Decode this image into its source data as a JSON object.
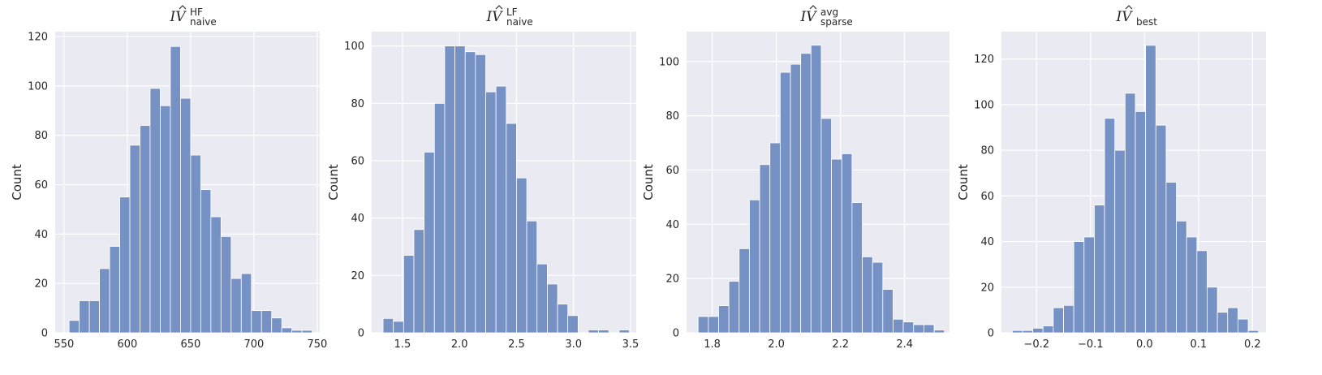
{
  "chart_data": [
    {
      "type": "bar",
      "title_base": "IV",
      "title_sup": "HF",
      "title_sub": "naive",
      "ylabel": "Count",
      "xlim": [
        543,
        752
      ],
      "ylim": [
        0,
        122
      ],
      "xticks": [
        550,
        600,
        650,
        700,
        750
      ],
      "yticks": [
        0,
        20,
        40,
        60,
        80,
        100,
        120
      ],
      "grid": true,
      "bins": [
        {
          "x0": 554,
          "x1": 562,
          "y": 5
        },
        {
          "x0": 562,
          "x1": 570,
          "y": 13
        },
        {
          "x0": 570,
          "x1": 578,
          "y": 13
        },
        {
          "x0": 578,
          "x1": 586,
          "y": 26
        },
        {
          "x0": 586,
          "x1": 594,
          "y": 35
        },
        {
          "x0": 594,
          "x1": 602,
          "y": 55
        },
        {
          "x0": 602,
          "x1": 610,
          "y": 76
        },
        {
          "x0": 610,
          "x1": 618,
          "y": 84
        },
        {
          "x0": 618,
          "x1": 626,
          "y": 99
        },
        {
          "x0": 626,
          "x1": 634,
          "y": 92
        },
        {
          "x0": 634,
          "x1": 642,
          "y": 116
        },
        {
          "x0": 642,
          "x1": 650,
          "y": 95
        },
        {
          "x0": 650,
          "x1": 658,
          "y": 72
        },
        {
          "x0": 658,
          "x1": 666,
          "y": 58
        },
        {
          "x0": 666,
          "x1": 674,
          "y": 47
        },
        {
          "x0": 674,
          "x1": 682,
          "y": 39
        },
        {
          "x0": 682,
          "x1": 690,
          "y": 22
        },
        {
          "x0": 690,
          "x1": 698,
          "y": 24
        },
        {
          "x0": 698,
          "x1": 706,
          "y": 9
        },
        {
          "x0": 706,
          "x1": 714,
          "y": 9
        },
        {
          "x0": 714,
          "x1": 722,
          "y": 6
        },
        {
          "x0": 722,
          "x1": 730,
          "y": 2
        },
        {
          "x0": 730,
          "x1": 738,
          "y": 1
        },
        {
          "x0": 738,
          "x1": 746,
          "y": 1
        }
      ]
    },
    {
      "type": "bar",
      "title_base": "IV",
      "title_sup": "LF",
      "title_sub": "naive",
      "ylabel": "Count",
      "xlim": [
        1.23,
        3.55
      ],
      "ylim": [
        0,
        105
      ],
      "xticks": [
        1.5,
        2.0,
        2.5,
        3.0,
        3.5
      ],
      "yticks": [
        0,
        20,
        40,
        60,
        80,
        100
      ],
      "grid": true,
      "bins": [
        {
          "x0": 1.33,
          "x1": 1.42,
          "y": 5
        },
        {
          "x0": 1.42,
          "x1": 1.51,
          "y": 4
        },
        {
          "x0": 1.51,
          "x1": 1.6,
          "y": 27
        },
        {
          "x0": 1.6,
          "x1": 1.69,
          "y": 36
        },
        {
          "x0": 1.69,
          "x1": 1.78,
          "y": 63
        },
        {
          "x0": 1.78,
          "x1": 1.87,
          "y": 80
        },
        {
          "x0": 1.87,
          "x1": 1.96,
          "y": 100
        },
        {
          "x0": 1.96,
          "x1": 2.05,
          "y": 100
        },
        {
          "x0": 2.05,
          "x1": 2.14,
          "y": 98
        },
        {
          "x0": 2.14,
          "x1": 2.23,
          "y": 97
        },
        {
          "x0": 2.23,
          "x1": 2.32,
          "y": 84
        },
        {
          "x0": 2.32,
          "x1": 2.41,
          "y": 86
        },
        {
          "x0": 2.41,
          "x1": 2.5,
          "y": 73
        },
        {
          "x0": 2.5,
          "x1": 2.59,
          "y": 54
        },
        {
          "x0": 2.59,
          "x1": 2.68,
          "y": 39
        },
        {
          "x0": 2.68,
          "x1": 2.77,
          "y": 24
        },
        {
          "x0": 2.77,
          "x1": 2.86,
          "y": 17
        },
        {
          "x0": 2.86,
          "x1": 2.95,
          "y": 10
        },
        {
          "x0": 2.95,
          "x1": 3.04,
          "y": 6
        },
        {
          "x0": 3.04,
          "x1": 3.13,
          "y": 0
        },
        {
          "x0": 3.13,
          "x1": 3.22,
          "y": 1
        },
        {
          "x0": 3.22,
          "x1": 3.31,
          "y": 1
        },
        {
          "x0": 3.31,
          "x1": 3.4,
          "y": 0
        },
        {
          "x0": 3.4,
          "x1": 3.49,
          "y": 1
        }
      ]
    },
    {
      "type": "bar",
      "title_base": "IV",
      "title_sup": "avg",
      "title_sub": "sparse",
      "ylabel": "Count",
      "xlim": [
        1.72,
        2.54
      ],
      "ylim": [
        0,
        111
      ],
      "xticks": [
        1.8,
        2.0,
        2.2,
        2.4
      ],
      "yticks": [
        0,
        20,
        40,
        60,
        80,
        100
      ],
      "grid": true,
      "bins": [
        {
          "x0": 1.756,
          "x1": 1.788,
          "y": 6
        },
        {
          "x0": 1.788,
          "x1": 1.82,
          "y": 6
        },
        {
          "x0": 1.82,
          "x1": 1.852,
          "y": 10
        },
        {
          "x0": 1.852,
          "x1": 1.884,
          "y": 19
        },
        {
          "x0": 1.884,
          "x1": 1.916,
          "y": 31
        },
        {
          "x0": 1.916,
          "x1": 1.948,
          "y": 49
        },
        {
          "x0": 1.948,
          "x1": 1.98,
          "y": 62
        },
        {
          "x0": 1.98,
          "x1": 2.012,
          "y": 70
        },
        {
          "x0": 2.012,
          "x1": 2.044,
          "y": 96
        },
        {
          "x0": 2.044,
          "x1": 2.076,
          "y": 99
        },
        {
          "x0": 2.076,
          "x1": 2.108,
          "y": 103
        },
        {
          "x0": 2.108,
          "x1": 2.14,
          "y": 106
        },
        {
          "x0": 2.14,
          "x1": 2.172,
          "y": 79
        },
        {
          "x0": 2.172,
          "x1": 2.204,
          "y": 64
        },
        {
          "x0": 2.204,
          "x1": 2.236,
          "y": 66
        },
        {
          "x0": 2.236,
          "x1": 2.268,
          "y": 48
        },
        {
          "x0": 2.268,
          "x1": 2.3,
          "y": 28
        },
        {
          "x0": 2.3,
          "x1": 2.332,
          "y": 26
        },
        {
          "x0": 2.332,
          "x1": 2.364,
          "y": 16
        },
        {
          "x0": 2.364,
          "x1": 2.396,
          "y": 5
        },
        {
          "x0": 2.396,
          "x1": 2.428,
          "y": 4
        },
        {
          "x0": 2.428,
          "x1": 2.46,
          "y": 3
        },
        {
          "x0": 2.46,
          "x1": 2.492,
          "y": 3
        },
        {
          "x0": 2.492,
          "x1": 2.524,
          "y": 1
        }
      ]
    },
    {
      "type": "bar",
      "title_base": "IV",
      "title_sup": "",
      "title_sub": "best",
      "ylabel": "Count",
      "xlim": [
        -0.265,
        0.225
      ],
      "ylim": [
        0,
        132
      ],
      "xticks": [
        -0.2,
        -0.1,
        0.0,
        0.1,
        0.2
      ],
      "xtick_labels": [
        "−0.2",
        "−0.1",
        "0.0",
        "0.1",
        "0.2"
      ],
      "yticks": [
        0,
        20,
        40,
        60,
        80,
        100,
        120
      ],
      "grid": true,
      "bins": [
        {
          "x0": -0.245,
          "x1": -0.226,
          "y": 1
        },
        {
          "x0": -0.226,
          "x1": -0.207,
          "y": 1
        },
        {
          "x0": -0.207,
          "x1": -0.188,
          "y": 2
        },
        {
          "x0": -0.188,
          "x1": -0.169,
          "y": 3
        },
        {
          "x0": -0.169,
          "x1": -0.15,
          "y": 11
        },
        {
          "x0": -0.15,
          "x1": -0.131,
          "y": 12
        },
        {
          "x0": -0.131,
          "x1": -0.112,
          "y": 40
        },
        {
          "x0": -0.112,
          "x1": -0.093,
          "y": 42
        },
        {
          "x0": -0.093,
          "x1": -0.074,
          "y": 56
        },
        {
          "x0": -0.074,
          "x1": -0.055,
          "y": 94
        },
        {
          "x0": -0.055,
          "x1": -0.036,
          "y": 80
        },
        {
          "x0": -0.036,
          "x1": -0.017,
          "y": 105
        },
        {
          "x0": -0.017,
          "x1": 0.002,
          "y": 97
        },
        {
          "x0": 0.002,
          "x1": 0.021,
          "y": 126
        },
        {
          "x0": 0.021,
          "x1": 0.04,
          "y": 91
        },
        {
          "x0": 0.04,
          "x1": 0.059,
          "y": 66
        },
        {
          "x0": 0.059,
          "x1": 0.078,
          "y": 49
        },
        {
          "x0": 0.078,
          "x1": 0.097,
          "y": 42
        },
        {
          "x0": 0.097,
          "x1": 0.116,
          "y": 36
        },
        {
          "x0": 0.116,
          "x1": 0.135,
          "y": 20
        },
        {
          "x0": 0.135,
          "x1": 0.154,
          "y": 9
        },
        {
          "x0": 0.154,
          "x1": 0.173,
          "y": 11
        },
        {
          "x0": 0.173,
          "x1": 0.192,
          "y": 6
        },
        {
          "x0": 0.192,
          "x1": 0.211,
          "y": 1
        }
      ]
    }
  ],
  "colors": {
    "plot_bg": "#eaeaf2",
    "grid": "#ffffff",
    "bar_fill": "#7691c4",
    "bar_edge": "#ffffff",
    "text": "#262626"
  }
}
